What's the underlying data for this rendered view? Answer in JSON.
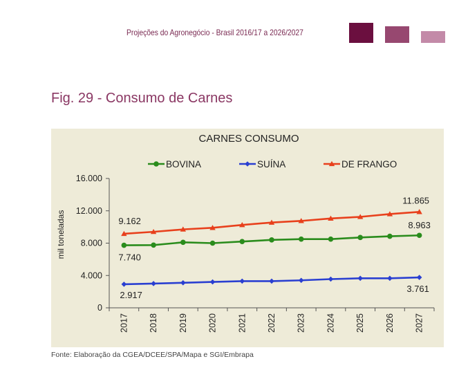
{
  "header": {
    "title": "Projeções do Agronegócio - Brasil 2016/17 a 2026/2027",
    "squares": [
      {
        "color": "#6b0f3f"
      },
      {
        "color": "#974870"
      },
      {
        "color": "#c38aa8"
      }
    ]
  },
  "figure": {
    "title": "Fig. 29 - Consumo de Carnes",
    "source": "Fonte: Elaboração da CGEA/DCEE/SPA/Mapa e SGI/Embrapa"
  },
  "chart_data": {
    "type": "line",
    "title": "CARNES CONSUMO",
    "xlabel": "",
    "ylabel": "mil toneladas",
    "categories": [
      "2017",
      "2018",
      "2019",
      "2020",
      "2021",
      "2022",
      "2023",
      "2024",
      "2025",
      "2026",
      "2027"
    ],
    "ylim": [
      0,
      16000
    ],
    "yticks": [
      0,
      4000,
      8000,
      12000,
      16000
    ],
    "ytick_labels": [
      "0",
      "4.000",
      "8.000",
      "12.000",
      "16.000"
    ],
    "grid": false,
    "legend_position": "top",
    "background": "#eeebd8",
    "series": [
      {
        "name": "BOVINA",
        "color": "#2a8c1c",
        "marker": "circle",
        "values": [
          7740,
          7760,
          8100,
          8000,
          8200,
          8400,
          8500,
          8500,
          8700,
          8850,
          8963
        ],
        "labels": {
          "first": "7.740",
          "last": "8.963"
        }
      },
      {
        "name": "SUÍNA",
        "color": "#2a3fd1",
        "marker": "diamond",
        "values": [
          2917,
          3000,
          3100,
          3200,
          3300,
          3300,
          3400,
          3550,
          3650,
          3650,
          3761
        ],
        "labels": {
          "first": "2.917",
          "last": "3.761"
        }
      },
      {
        "name": "DE FRANGO",
        "color": "#e8401c",
        "marker": "triangle",
        "values": [
          9162,
          9400,
          9700,
          9900,
          10250,
          10550,
          10750,
          11050,
          11250,
          11600,
          11865
        ],
        "labels": {
          "first": "9.162",
          "last": "11.865"
        }
      }
    ]
  }
}
